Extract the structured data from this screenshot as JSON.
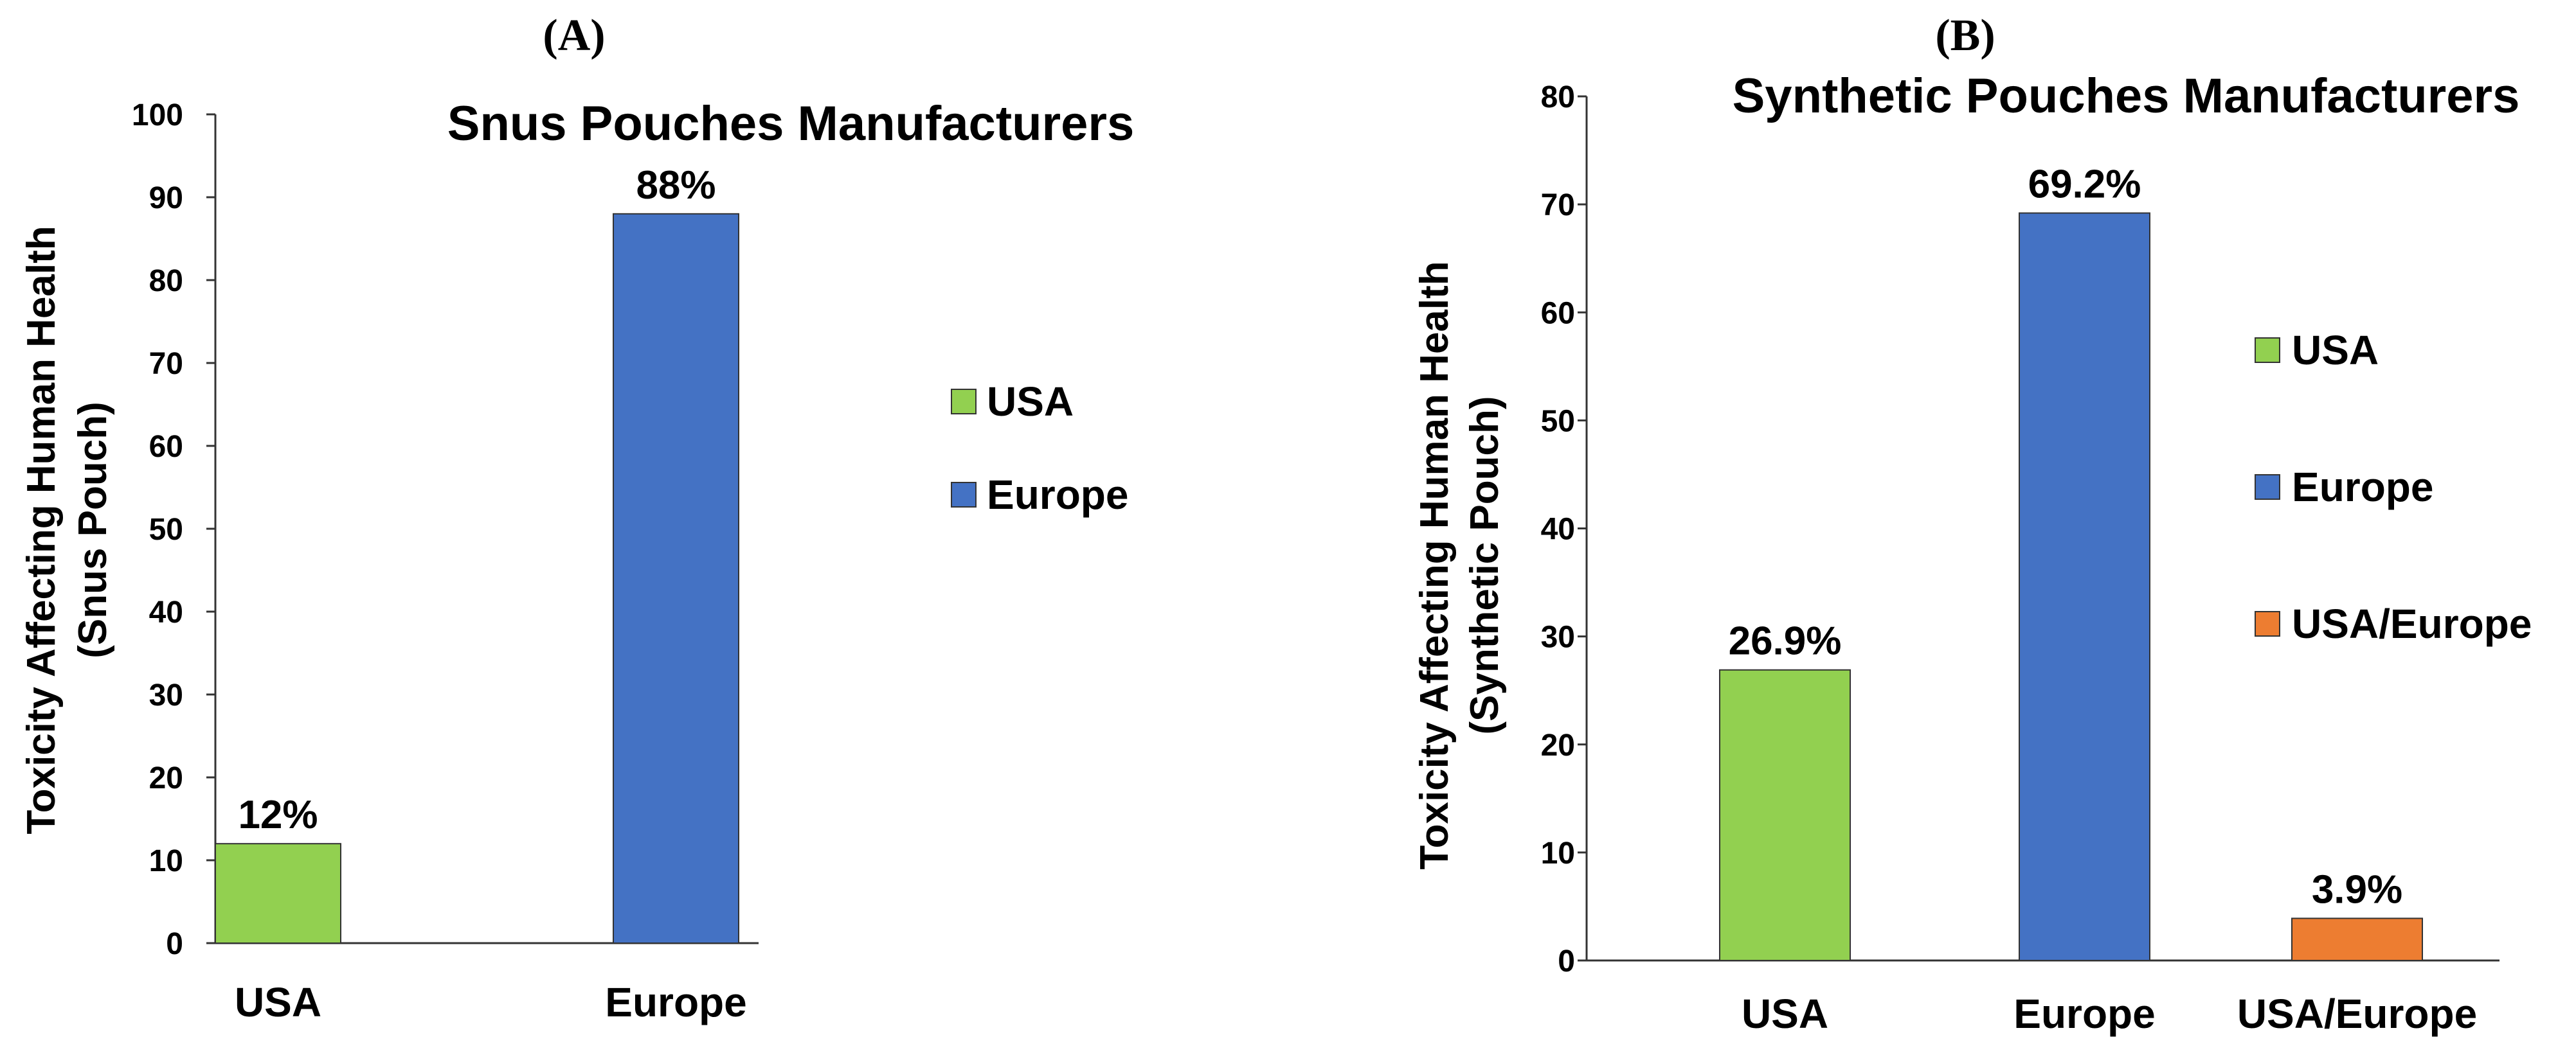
{
  "colors": {
    "usa": "#92d050",
    "europe": "#4472c4",
    "usa_europe": "#ed7d31"
  },
  "chart_data": [
    {
      "panel": "(A)",
      "type": "bar",
      "title": "Snus Pouches Manufacturers",
      "ylabel_line1": "Toxicity Affecting Human Health",
      "ylabel_line2": "(Snus Pouch)",
      "xlabel": "",
      "categories": [
        "USA",
        "Europe"
      ],
      "values": [
        12,
        88
      ],
      "value_labels": [
        "12%",
        "88%"
      ],
      "bar_colors": [
        "#92d050",
        "#4472c4"
      ],
      "ylim": [
        0,
        100
      ],
      "yticks": [
        0,
        10,
        20,
        30,
        40,
        50,
        60,
        70,
        80,
        90,
        100
      ],
      "grid": false,
      "legend_position": "right",
      "legend": [
        {
          "label": "USA",
          "color": "#92d050"
        },
        {
          "label": "Europe",
          "color": "#4472c4"
        }
      ]
    },
    {
      "panel": "(B)",
      "type": "bar",
      "title": "Synthetic Pouches Manufacturers",
      "ylabel_line1": "Toxicity Affecting Human Health",
      "ylabel_line2": "(Synthetic Pouch)",
      "xlabel": "",
      "categories": [
        "USA",
        "Europe",
        "USA/Europe"
      ],
      "values": [
        26.9,
        69.2,
        3.9
      ],
      "value_labels": [
        "26.9%",
        "69.2%",
        "3.9%"
      ],
      "bar_colors": [
        "#92d050",
        "#4472c4",
        "#ed7d31"
      ],
      "ylim": [
        0,
        80
      ],
      "yticks": [
        0,
        10,
        20,
        30,
        40,
        50,
        60,
        70,
        80
      ],
      "grid": false,
      "legend_position": "right",
      "legend": [
        {
          "label": "USA",
          "color": "#92d050"
        },
        {
          "label": "Europe",
          "color": "#4472c4"
        },
        {
          "label": "USA/Europe",
          "color": "#ed7d31"
        }
      ]
    }
  ]
}
